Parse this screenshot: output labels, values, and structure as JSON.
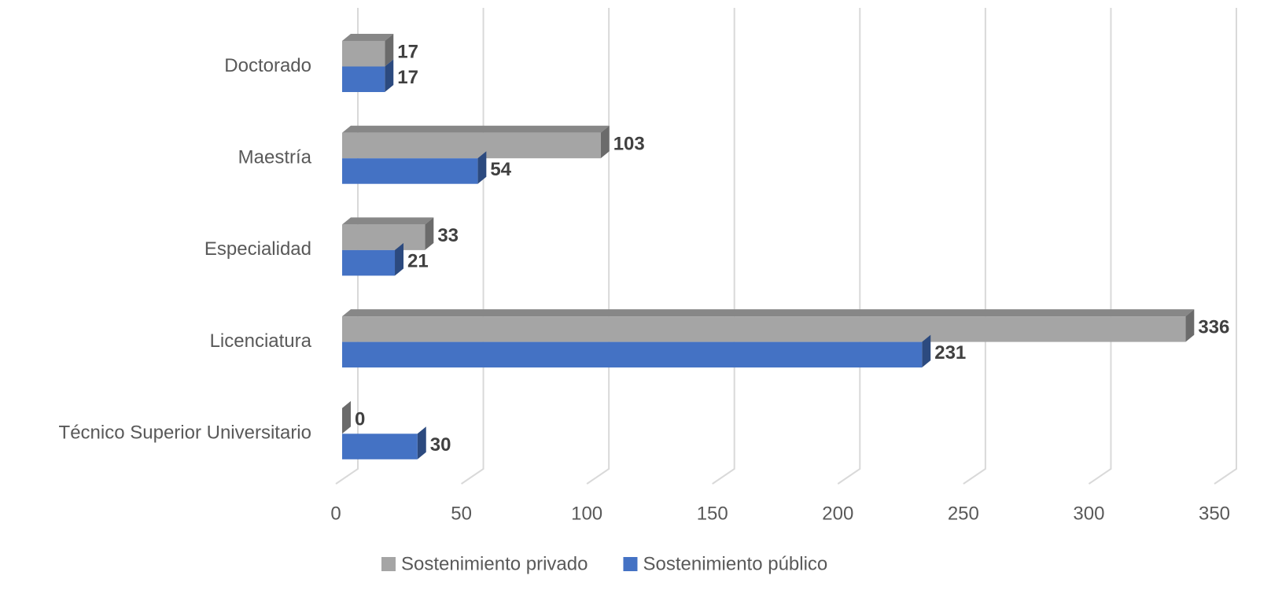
{
  "chart_data": {
    "type": "bar",
    "orientation": "horizontal",
    "categories": [
      "Doctorado",
      "Maestría",
      "Especialidad",
      "Licenciatura",
      "Técnico Superior Universitario"
    ],
    "series": [
      {
        "name": "Sostenimiento privado",
        "color": "#a5a5a5",
        "values": [
          17,
          103,
          33,
          336,
          0
        ]
      },
      {
        "name": "Sostenimiento público",
        "color": "#4472c4",
        "values": [
          17,
          54,
          21,
          231,
          30
        ]
      }
    ],
    "xlim": [
      0,
      350
    ],
    "xticks": [
      0,
      50,
      100,
      150,
      200,
      250,
      300,
      350
    ],
    "grid": true,
    "legend": "bottom"
  }
}
